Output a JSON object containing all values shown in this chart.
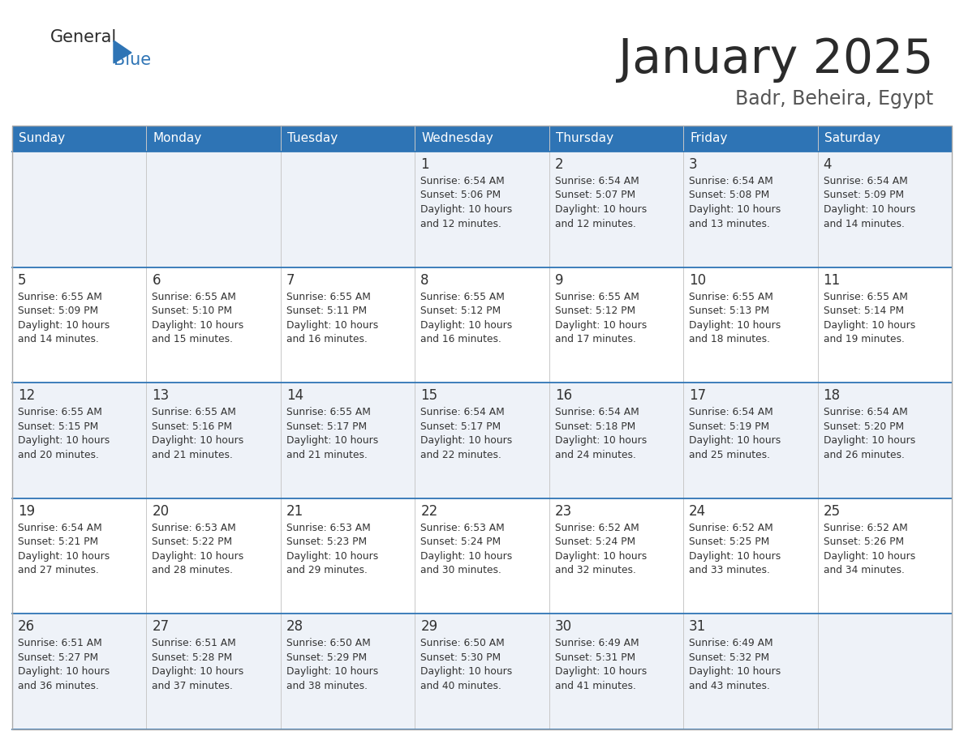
{
  "title": "January 2025",
  "subtitle": "Badr, Beheira, Egypt",
  "days_of_week": [
    "Sunday",
    "Monday",
    "Tuesday",
    "Wednesday",
    "Thursday",
    "Friday",
    "Saturday"
  ],
  "header_bg": "#2e74b5",
  "header_text": "#ffffff",
  "row_bg_light": "#eef2f8",
  "row_bg_white": "#ffffff",
  "row_separator_color": "#2e74b5",
  "text_color": "#333333",
  "calendar": [
    [
      {
        "day": "",
        "sunrise": "",
        "sunset": "",
        "daylight_h": "",
        "daylight_m": ""
      },
      {
        "day": "",
        "sunrise": "",
        "sunset": "",
        "daylight_h": "",
        "daylight_m": ""
      },
      {
        "day": "",
        "sunrise": "",
        "sunset": "",
        "daylight_h": "",
        "daylight_m": ""
      },
      {
        "day": "1",
        "sunrise": "6:54 AM",
        "sunset": "5:06 PM",
        "daylight_h": "10 hours",
        "daylight_m": "and 12 minutes."
      },
      {
        "day": "2",
        "sunrise": "6:54 AM",
        "sunset": "5:07 PM",
        "daylight_h": "10 hours",
        "daylight_m": "and 12 minutes."
      },
      {
        "day": "3",
        "sunrise": "6:54 AM",
        "sunset": "5:08 PM",
        "daylight_h": "10 hours",
        "daylight_m": "and 13 minutes."
      },
      {
        "day": "4",
        "sunrise": "6:54 AM",
        "sunset": "5:09 PM",
        "daylight_h": "10 hours",
        "daylight_m": "and 14 minutes."
      }
    ],
    [
      {
        "day": "5",
        "sunrise": "6:55 AM",
        "sunset": "5:09 PM",
        "daylight_h": "10 hours",
        "daylight_m": "and 14 minutes."
      },
      {
        "day": "6",
        "sunrise": "6:55 AM",
        "sunset": "5:10 PM",
        "daylight_h": "10 hours",
        "daylight_m": "and 15 minutes."
      },
      {
        "day": "7",
        "sunrise": "6:55 AM",
        "sunset": "5:11 PM",
        "daylight_h": "10 hours",
        "daylight_m": "and 16 minutes."
      },
      {
        "day": "8",
        "sunrise": "6:55 AM",
        "sunset": "5:12 PM",
        "daylight_h": "10 hours",
        "daylight_m": "and 16 minutes."
      },
      {
        "day": "9",
        "sunrise": "6:55 AM",
        "sunset": "5:12 PM",
        "daylight_h": "10 hours",
        "daylight_m": "and 17 minutes."
      },
      {
        "day": "10",
        "sunrise": "6:55 AM",
        "sunset": "5:13 PM",
        "daylight_h": "10 hours",
        "daylight_m": "and 18 minutes."
      },
      {
        "day": "11",
        "sunrise": "6:55 AM",
        "sunset": "5:14 PM",
        "daylight_h": "10 hours",
        "daylight_m": "and 19 minutes."
      }
    ],
    [
      {
        "day": "12",
        "sunrise": "6:55 AM",
        "sunset": "5:15 PM",
        "daylight_h": "10 hours",
        "daylight_m": "and 20 minutes."
      },
      {
        "day": "13",
        "sunrise": "6:55 AM",
        "sunset": "5:16 PM",
        "daylight_h": "10 hours",
        "daylight_m": "and 21 minutes."
      },
      {
        "day": "14",
        "sunrise": "6:55 AM",
        "sunset": "5:17 PM",
        "daylight_h": "10 hours",
        "daylight_m": "and 21 minutes."
      },
      {
        "day": "15",
        "sunrise": "6:54 AM",
        "sunset": "5:17 PM",
        "daylight_h": "10 hours",
        "daylight_m": "and 22 minutes."
      },
      {
        "day": "16",
        "sunrise": "6:54 AM",
        "sunset": "5:18 PM",
        "daylight_h": "10 hours",
        "daylight_m": "and 24 minutes."
      },
      {
        "day": "17",
        "sunrise": "6:54 AM",
        "sunset": "5:19 PM",
        "daylight_h": "10 hours",
        "daylight_m": "and 25 minutes."
      },
      {
        "day": "18",
        "sunrise": "6:54 AM",
        "sunset": "5:20 PM",
        "daylight_h": "10 hours",
        "daylight_m": "and 26 minutes."
      }
    ],
    [
      {
        "day": "19",
        "sunrise": "6:54 AM",
        "sunset": "5:21 PM",
        "daylight_h": "10 hours",
        "daylight_m": "and 27 minutes."
      },
      {
        "day": "20",
        "sunrise": "6:53 AM",
        "sunset": "5:22 PM",
        "daylight_h": "10 hours",
        "daylight_m": "and 28 minutes."
      },
      {
        "day": "21",
        "sunrise": "6:53 AM",
        "sunset": "5:23 PM",
        "daylight_h": "10 hours",
        "daylight_m": "and 29 minutes."
      },
      {
        "day": "22",
        "sunrise": "6:53 AM",
        "sunset": "5:24 PM",
        "daylight_h": "10 hours",
        "daylight_m": "and 30 minutes."
      },
      {
        "day": "23",
        "sunrise": "6:52 AM",
        "sunset": "5:24 PM",
        "daylight_h": "10 hours",
        "daylight_m": "and 32 minutes."
      },
      {
        "day": "24",
        "sunrise": "6:52 AM",
        "sunset": "5:25 PM",
        "daylight_h": "10 hours",
        "daylight_m": "and 33 minutes."
      },
      {
        "day": "25",
        "sunrise": "6:52 AM",
        "sunset": "5:26 PM",
        "daylight_h": "10 hours",
        "daylight_m": "and 34 minutes."
      }
    ],
    [
      {
        "day": "26",
        "sunrise": "6:51 AM",
        "sunset": "5:27 PM",
        "daylight_h": "10 hours",
        "daylight_m": "and 36 minutes."
      },
      {
        "day": "27",
        "sunrise": "6:51 AM",
        "sunset": "5:28 PM",
        "daylight_h": "10 hours",
        "daylight_m": "and 37 minutes."
      },
      {
        "day": "28",
        "sunrise": "6:50 AM",
        "sunset": "5:29 PM",
        "daylight_h": "10 hours",
        "daylight_m": "and 38 minutes."
      },
      {
        "day": "29",
        "sunrise": "6:50 AM",
        "sunset": "5:30 PM",
        "daylight_h": "10 hours",
        "daylight_m": "and 40 minutes."
      },
      {
        "day": "30",
        "sunrise": "6:49 AM",
        "sunset": "5:31 PM",
        "daylight_h": "10 hours",
        "daylight_m": "and 41 minutes."
      },
      {
        "day": "31",
        "sunrise": "6:49 AM",
        "sunset": "5:32 PM",
        "daylight_h": "10 hours",
        "daylight_m": "and 43 minutes."
      },
      {
        "day": "",
        "sunrise": "",
        "sunset": "",
        "daylight_h": "",
        "daylight_m": ""
      }
    ]
  ]
}
